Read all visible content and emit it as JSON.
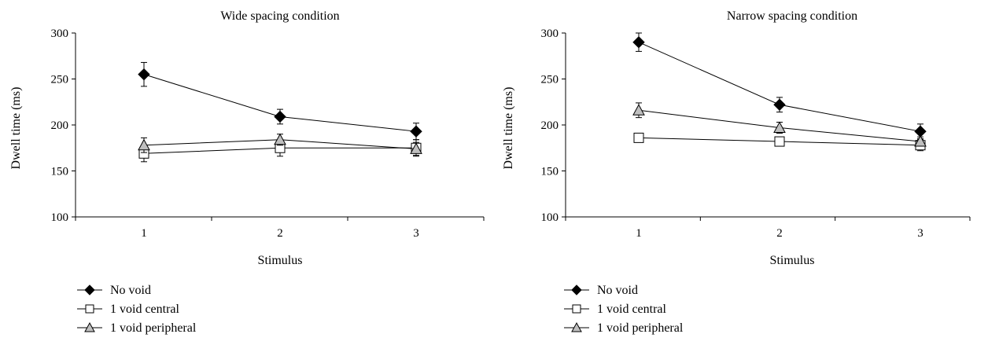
{
  "chart_data": [
    {
      "type": "line",
      "title": "Wide spacing condition",
      "xlabel": "Stimulus",
      "ylabel": "Dwell time (ms)",
      "categories": [
        "1",
        "2",
        "3"
      ],
      "ylim": [
        100,
        300
      ],
      "yticks": [
        "100",
        "150",
        "200",
        "250",
        "300"
      ],
      "grid": false,
      "legend": "bottom-left",
      "series": [
        {
          "name": "No void",
          "marker": "diamond",
          "fill": "#000000",
          "values": [
            255,
            209,
            193
          ],
          "errors": [
            13,
            8,
            9
          ]
        },
        {
          "name": "1 void central",
          "marker": "square",
          "fill": "#ffffff",
          "values": [
            169,
            175,
            175
          ],
          "errors": [
            9,
            9,
            9
          ]
        },
        {
          "name": "1 void peripheral",
          "marker": "triangle",
          "fill": "#bfbfbf",
          "values": [
            178,
            184,
            174
          ],
          "errors": [
            8,
            6,
            7
          ]
        }
      ]
    },
    {
      "type": "line",
      "title": "Narrow spacing condition",
      "xlabel": "Stimulus",
      "ylabel": "Dwell time (ms)",
      "categories": [
        "1",
        "2",
        "3"
      ],
      "ylim": [
        100,
        300
      ],
      "yticks": [
        "100",
        "150",
        "200",
        "250",
        "300"
      ],
      "grid": false,
      "legend": "bottom-left",
      "series": [
        {
          "name": "No void",
          "marker": "diamond",
          "fill": "#000000",
          "values": [
            290,
            222,
            193
          ],
          "errors": [
            10,
            8,
            8
          ]
        },
        {
          "name": "1 void central",
          "marker": "square",
          "fill": "#ffffff",
          "values": [
            186,
            182,
            178
          ],
          "errors": [
            0,
            0,
            6
          ]
        },
        {
          "name": "1 void peripheral",
          "marker": "triangle",
          "fill": "#bfbfbf",
          "values": [
            216,
            197,
            182
          ],
          "errors": [
            8,
            6,
            5
          ]
        }
      ]
    }
  ]
}
